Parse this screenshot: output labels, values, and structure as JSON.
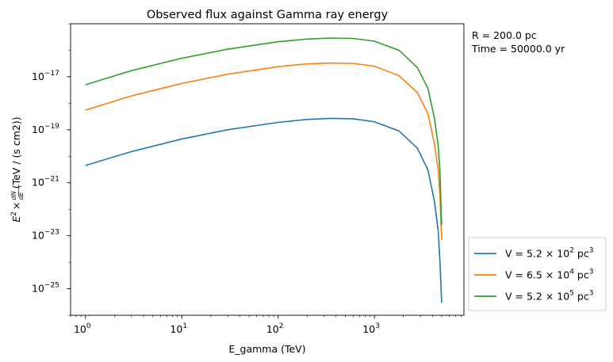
{
  "chart_data": {
    "type": "line",
    "title": "Observed flux against Gamma ray energy",
    "xlabel": "E_gamma (TeV)",
    "ylabel_parts": [
      "E",
      "2",
      "×",
      "dN",
      "dE",
      "(TeV / (s cm2))"
    ],
    "xscale": "log",
    "yscale": "log",
    "xlim": [
      0.7,
      8500
    ],
    "ylim": [
      1e-26,
      1e-15
    ],
    "x_ticks": [
      {
        "base": "10",
        "exp": "0",
        "value": 1
      },
      {
        "base": "10",
        "exp": "1",
        "value": 10
      },
      {
        "base": "10",
        "exp": "2",
        "value": 100
      },
      {
        "base": "10",
        "exp": "3",
        "value": 1000
      }
    ],
    "y_ticks": [
      {
        "base": "10",
        "exp": "−25",
        "value": 1e-25
      },
      {
        "base": "10",
        "exp": "−23",
        "value": 1e-23
      },
      {
        "base": "10",
        "exp": "−21",
        "value": 1e-21
      },
      {
        "base": "10",
        "exp": "−19",
        "value": 1e-19
      },
      {
        "base": "10",
        "exp": "−17",
        "value": 1e-17
      }
    ],
    "annotations": [
      "R = 200.0 pc",
      "Time = 50000.0 yr"
    ],
    "legend_position": "outside-right-bottom",
    "series": [
      {
        "name_parts": [
          "V = 5.2 × 10",
          "2",
          " pc",
          "3"
        ],
        "color": "#1f77b4",
        "x": [
          1,
          3,
          10,
          30,
          100,
          200,
          350,
          600,
          1000,
          1800,
          2800,
          3600,
          4200,
          4600,
          4800,
          4920,
          5000
        ],
        "y": [
          4.5e-21,
          1.5e-20,
          4.5e-20,
          1e-19,
          1.9e-19,
          2.45e-19,
          2.7e-19,
          2.6e-19,
          2e-19,
          9e-20,
          2e-20,
          3e-21,
          2e-22,
          1.5e-23,
          1e-24,
          1e-25,
          3e-26
        ]
      },
      {
        "name_parts": [
          "V = 6.5 × 10",
          "4",
          " pc",
          "3"
        ],
        "color": "#ff7f0e",
        "x": [
          1,
          3,
          10,
          30,
          100,
          200,
          350,
          600,
          1000,
          1800,
          2800,
          3600,
          4200,
          4600,
          4800,
          4920,
          5000
        ],
        "y": [
          5.5e-19,
          1.9e-18,
          5.6e-18,
          1.25e-17,
          2.4e-17,
          3.05e-17,
          3.3e-17,
          3.2e-17,
          2.5e-17,
          1.1e-17,
          2.5e-18,
          4e-19,
          3e-20,
          3e-21,
          3e-22,
          2.5e-23,
          7e-24
        ]
      },
      {
        "name_parts": [
          "V = 5.2 × 10",
          "5",
          " pc",
          "3"
        ],
        "color": "#2ca02c",
        "x": [
          1,
          3,
          10,
          30,
          100,
          200,
          350,
          600,
          1000,
          1800,
          2800,
          3600,
          4200,
          4600,
          4800,
          4920,
          5000
        ],
        "y": [
          5e-18,
          1.7e-17,
          5e-17,
          1.1e-16,
          2.1e-16,
          2.65e-16,
          2.9e-16,
          2.8e-16,
          2.2e-16,
          1e-16,
          2.2e-17,
          3.6e-18,
          2.7e-19,
          2.5e-20,
          2.5e-21,
          1e-22,
          2.5e-23
        ]
      }
    ]
  }
}
